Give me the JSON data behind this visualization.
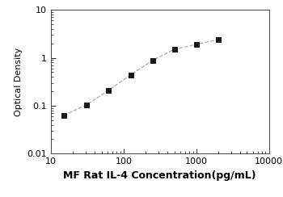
{
  "x_data": [
    15,
    31.25,
    62.5,
    125,
    250,
    500,
    1000,
    2000
  ],
  "y_data": [
    0.063,
    0.105,
    0.21,
    0.44,
    0.88,
    1.5,
    1.9,
    2.4
  ],
  "xlabel": "MF Rat IL-4 Concentration(pg/mL)",
  "ylabel": "Optical Density",
  "xlim": [
    10,
    10000
  ],
  "ylim": [
    0.01,
    10
  ],
  "xticks": [
    10,
    100,
    1000,
    10000
  ],
  "yticks": [
    0.01,
    0.1,
    1,
    10
  ],
  "ytick_labels": [
    "0.01",
    "0.1",
    "1",
    "10"
  ],
  "xtick_labels": [
    "10",
    "100",
    "1000",
    "10000"
  ],
  "line_color": "#aaaaaa",
  "marker_color": "#1a1a1a",
  "marker": "s",
  "marker_size": 4.5,
  "line_style": "--",
  "line_width": 0.9,
  "xlabel_fontsize": 9,
  "ylabel_fontsize": 8,
  "tick_fontsize": 8,
  "background_color": "#ffffff"
}
